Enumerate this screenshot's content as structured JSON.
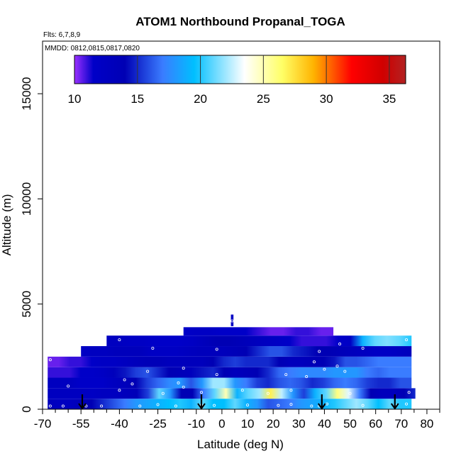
{
  "chart_data": {
    "type": "heatmap",
    "title": "ATOM1 Northbound Propanal_TOGA",
    "flights_label": "Flts: 6,7,8,9",
    "dates_label": "MMDD: 0812,0815,0817,0820",
    "xlabel": "Latitude (deg N)",
    "ylabel": "Altitude (m)",
    "xlim": [
      -70,
      85
    ],
    "ylim": [
      0,
      17500
    ],
    "xticks": [
      -70,
      -55,
      -40,
      -25,
      -10,
      0,
      10,
      20,
      30,
      40,
      50,
      60,
      70,
      80
    ],
    "xtick_labels": [
      "-70",
      "-55",
      "-40",
      "-25",
      "-10",
      "0",
      "10",
      "20",
      "30",
      "40",
      "50",
      "60",
      "70",
      "80"
    ],
    "xminor": [
      -65,
      -60,
      -50,
      -45,
      -35,
      -30,
      -20,
      -15,
      -5,
      5,
      15,
      25,
      35,
      45,
      55,
      65,
      75,
      85
    ],
    "yticks": [
      0,
      5000,
      10000,
      15000
    ],
    "ytick_labels": [
      "0",
      "5000",
      "10000",
      "15000"
    ],
    "colorbar": {
      "min": 10,
      "max": 36.3,
      "ticks": [
        10,
        15,
        20,
        25,
        30,
        35
      ],
      "tick_labels": [
        "10",
        "15",
        "20",
        "25",
        "30",
        "35"
      ],
      "stops": [
        {
          "v": 10,
          "c": "#9b30ff"
        },
        {
          "v": 11.5,
          "c": "#0000c8"
        },
        {
          "v": 14,
          "c": "#0000b4"
        },
        {
          "v": 17,
          "c": "#3a7cff"
        },
        {
          "v": 19.5,
          "c": "#00bfff"
        },
        {
          "v": 23.5,
          "c": "#ffffff"
        },
        {
          "v": 26.5,
          "c": "#ffff66"
        },
        {
          "v": 29,
          "c": "#ffb300"
        },
        {
          "v": 32,
          "c": "#ff0000"
        },
        {
          "v": 34.5,
          "c": "#d00000"
        },
        {
          "v": 36.3,
          "c": "#b22222"
        }
      ]
    },
    "curtain_layers": [
      {
        "alt_min": 0,
        "alt_max": 500,
        "lat_start": -68,
        "lat_end": 74,
        "values": [
          13,
          12.5,
          12.5,
          13.5,
          14,
          15,
          16,
          17,
          18,
          18.5,
          19,
          19.5,
          20,
          19,
          21,
          19.5,
          19.5,
          21,
          19,
          18,
          16,
          16.5,
          17,
          18,
          18.5,
          19,
          20,
          21,
          22,
          21,
          19.5,
          21,
          20,
          20
        ]
      },
      {
        "alt_min": 500,
        "alt_max": 1000,
        "lat_start": -68,
        "lat_end": 75.5,
        "values": [
          12.5,
          12.5,
          12.5,
          12.5,
          12,
          12.5,
          12.5,
          13,
          13.5,
          15.5,
          21,
          18,
          14,
          14,
          17,
          21,
          25,
          19,
          21,
          22,
          27,
          22.5,
          18,
          15.5,
          19,
          21,
          26,
          23,
          17,
          14,
          13,
          13,
          14,
          15
        ]
      },
      {
        "alt_min": 1000,
        "alt_max": 1500,
        "lat_start": -68,
        "lat_end": 74,
        "values": [
          12.5,
          12.5,
          12.5,
          11.5,
          11.5,
          11.5,
          12.5,
          13,
          14,
          15.5,
          16.5,
          17.5,
          18,
          16,
          18,
          22,
          22,
          18,
          17,
          15.5,
          15,
          16,
          16.5,
          16,
          15,
          15.5,
          16.5,
          17,
          16.5,
          15.5,
          15,
          15,
          16,
          16
        ]
      },
      {
        "alt_min": 1500,
        "alt_max": 2000,
        "lat_start": -68,
        "lat_end": 74,
        "values": [
          11,
          11,
          11,
          11.5,
          11.5,
          12,
          13,
          14.5,
          15.5,
          16,
          15,
          14,
          13.5,
          13,
          14.5,
          15,
          14,
          13,
          13.5,
          14,
          15,
          16.5,
          17,
          17.5,
          17.5,
          17.5,
          18,
          18,
          18,
          17,
          16.5,
          17,
          17,
          17
        ]
      },
      {
        "alt_min": 2000,
        "alt_max": 2500,
        "lat_start": -68,
        "lat_end": 74,
        "values": [
          10.5,
          10.5,
          11,
          11,
          11.5,
          12,
          12,
          12.5,
          13,
          13.5,
          13.5,
          13,
          13,
          13,
          13,
          14,
          15,
          15.5,
          15,
          15,
          15,
          14,
          13,
          13,
          13.5,
          14,
          14.5,
          16,
          16,
          16.5,
          17,
          17,
          17,
          17
        ]
      },
      {
        "alt_min": 2500,
        "alt_max": 3000,
        "lat_start": -55,
        "lat_end": 74,
        "values": [
          12,
          12.5,
          12.5,
          13,
          13,
          13,
          12,
          12,
          12,
          12.5,
          13,
          13,
          13,
          13.5,
          14,
          15,
          16,
          16,
          15,
          14.5,
          14,
          14,
          13.5,
          13,
          12.5,
          12,
          12,
          12.5,
          13
        ]
      },
      {
        "alt_min": 3000,
        "alt_max": 3500,
        "lat_start": -45,
        "lat_end": 74,
        "values": [
          12.5,
          12.5,
          12,
          12,
          11.5,
          11.5,
          11.5,
          12,
          13,
          14,
          14,
          13.5,
          13,
          12.5,
          12,
          11.5,
          11,
          11,
          11,
          11.5,
          12,
          19,
          21,
          21.5,
          21,
          20
        ]
      },
      {
        "alt_min": 3500,
        "alt_max": 3900,
        "lat_start": -15,
        "lat_end": 43.5,
        "values": [
          11.5,
          12,
          12,
          11.5,
          11.5,
          11.5,
          11,
          10.5,
          10.5,
          11,
          11,
          10.5,
          10.5
        ]
      },
      {
        "alt_min": 3950,
        "alt_max": 4500,
        "lat_start": 3.5,
        "lat_end": 4.5,
        "values": [
          12
        ]
      }
    ],
    "sample_points": [
      [
        -67,
        150
      ],
      [
        -62,
        150
      ],
      [
        -53,
        150
      ],
      [
        -47,
        150
      ],
      [
        -32,
        150
      ],
      [
        -25,
        220
      ],
      [
        -18,
        150
      ],
      [
        -8,
        200
      ],
      [
        -3,
        180
      ],
      [
        10,
        200
      ],
      [
        22,
        180
      ],
      [
        27,
        230
      ],
      [
        35,
        150
      ],
      [
        38,
        150
      ],
      [
        41,
        250
      ],
      [
        55,
        180
      ],
      [
        68,
        180
      ],
      [
        72,
        250
      ],
      [
        -60,
        1100
      ],
      [
        -40,
        900
      ],
      [
        -35,
        1200
      ],
      [
        -23,
        750
      ],
      [
        -15,
        1050
      ],
      [
        -8,
        800
      ],
      [
        8,
        900
      ],
      [
        18,
        750
      ],
      [
        27,
        900
      ],
      [
        50,
        750
      ],
      [
        73,
        800
      ],
      [
        -38,
        1400
      ],
      [
        -17,
        1250
      ],
      [
        -2,
        1650
      ],
      [
        25,
        1650
      ],
      [
        33,
        1550
      ],
      [
        40,
        1900
      ],
      [
        48,
        1800
      ],
      [
        -67,
        2350
      ],
      [
        -29,
        1800
      ],
      [
        -15,
        1950
      ],
      [
        36,
        2250
      ],
      [
        45,
        2050
      ],
      [
        -40,
        3300
      ],
      [
        -27,
        2900
      ],
      [
        -2,
        2850
      ],
      [
        38,
        2750
      ],
      [
        46,
        3100
      ],
      [
        55,
        2900
      ],
      [
        72,
        3300
      ],
      [
        4,
        4200
      ]
    ],
    "flight_starts": [
      -54.5,
      -8,
      39,
      67.5
    ]
  }
}
